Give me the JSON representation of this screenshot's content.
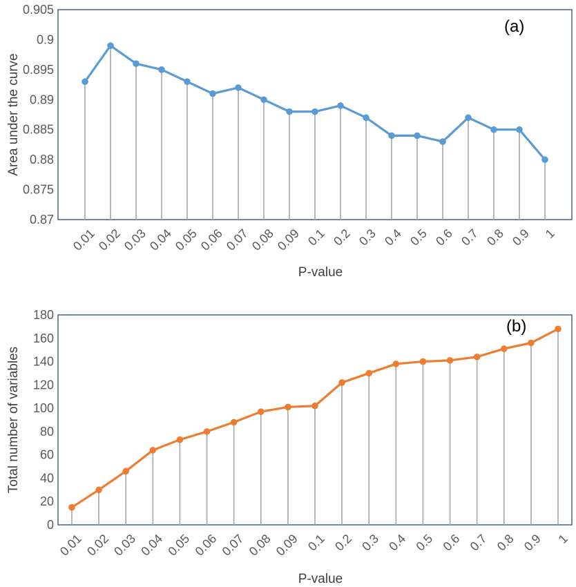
{
  "colors": {
    "series_a": "#5B9BD5",
    "series_b": "#ED7D31",
    "drop_lines": "#A6A6A6",
    "plot_border": "#1F3864",
    "tick_text": "#595959"
  },
  "chart_data": [
    {
      "type": "line",
      "panel_label": "(a)",
      "xlabel": "P-value",
      "ylabel": "Area under the curve",
      "categories": [
        "0.01",
        "0.02",
        "0.03",
        "0.04",
        "0.05",
        "0.06",
        "0.07",
        "0.08",
        "0.09",
        "0.1",
        "0.2",
        "0.3",
        "0.4",
        "0.5",
        "0.6",
        "0.7",
        "0.8",
        "0.9",
        "1"
      ],
      "yticks": [
        "0.87",
        "0.875",
        "0.88",
        "0.885",
        "0.89",
        "0.895",
        "0.9",
        "0.905"
      ],
      "ylim": [
        0.87,
        0.905
      ],
      "series": [
        {
          "values": [
            0.893,
            0.899,
            0.896,
            0.895,
            0.893,
            0.891,
            0.892,
            0.89,
            0.888,
            0.888,
            0.889,
            0.887,
            0.884,
            0.884,
            0.883,
            0.887,
            0.885,
            0.885,
            0.88
          ]
        }
      ],
      "drop_lines": true,
      "grid": false,
      "legend": "none"
    },
    {
      "type": "line",
      "panel_label": "(b)",
      "xlabel": "P-value",
      "ylabel": "Total number of variables",
      "categories": [
        "0.01",
        "0.02",
        "0.03",
        "0.04",
        "0.05",
        "0.06",
        "0.07",
        "0.08",
        "0.09",
        "0.1",
        "0.2",
        "0.3",
        "0.4",
        "0.5",
        "0.6",
        "0.7",
        "0.8",
        "0.9",
        "1"
      ],
      "yticks": [
        "0",
        "20",
        "40",
        "60",
        "80",
        "100",
        "120",
        "140",
        "160",
        "180"
      ],
      "ylim": [
        0,
        180
      ],
      "series": [
        {
          "values": [
            15,
            30,
            46,
            64,
            73,
            80,
            88,
            97,
            101,
            102,
            122,
            130,
            138,
            140,
            141,
            144,
            151,
            156,
            168
          ]
        }
      ],
      "drop_lines": true,
      "grid": false,
      "legend": "none"
    }
  ]
}
